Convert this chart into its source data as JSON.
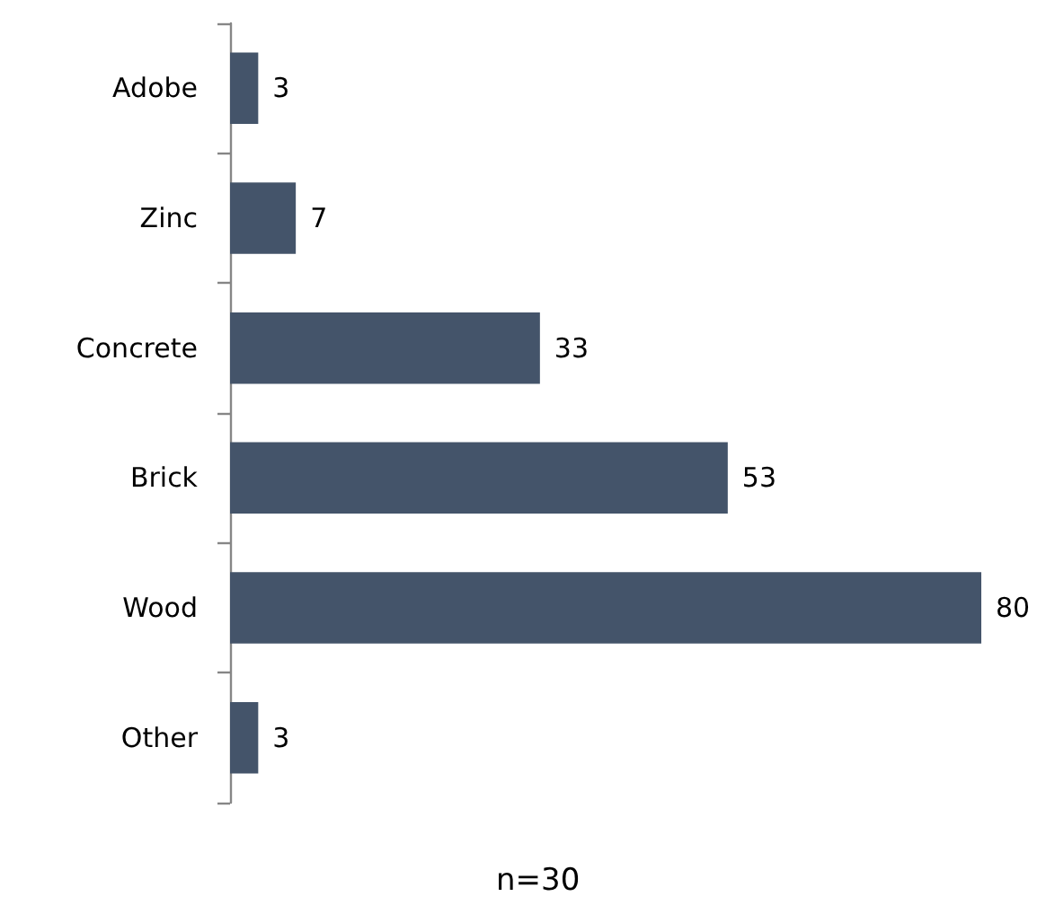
{
  "chart_data": {
    "type": "bar",
    "orientation": "horizontal",
    "categories": [
      "Adobe",
      "Zinc",
      "Concrete",
      "Brick",
      "Wood",
      "Other"
    ],
    "values": [
      3,
      7,
      33,
      53,
      80,
      3
    ],
    "color": "#44546a",
    "data_labels": true,
    "annotations": [
      "n=30"
    ]
  }
}
